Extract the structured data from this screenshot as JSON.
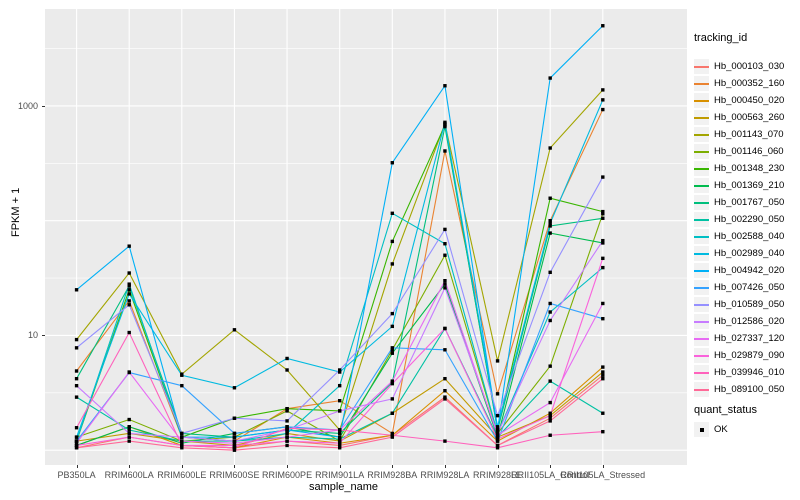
{
  "axes": {
    "y_title": "FPKM + 1",
    "x_title": "sample_name",
    "y_tick_labels": [
      "10",
      "1000"
    ]
  },
  "legend": {
    "tracking_title": "tracking_id",
    "quant_title": "quant_status",
    "quant_item": "OK"
  },
  "style": {
    "panel_bg": "#EBEBEB",
    "grid_color": "#FFFFFF",
    "tick_label_color": "#4D4D4D",
    "point_color": "#000000"
  },
  "chart_data": {
    "type": "line",
    "title": "",
    "xlabel": "sample_name",
    "ylabel": "FPKM + 1",
    "y_scale": "log10",
    "ylim": [
      1,
      7000
    ],
    "y_major_breaks": [
      1,
      10,
      100,
      1000
    ],
    "y_minor_breaks": [
      3.162,
      31.62,
      316.2,
      3162
    ],
    "y_labeled_breaks": [
      10,
      1000
    ],
    "grid": true,
    "legend_position": "right",
    "point_shape": "black-square",
    "quant_status_value": "OK",
    "categories": [
      "PB350LA",
      "RRIM600LA",
      "RRIM600LE",
      "RRIM600SE",
      "RRIM600PE",
      "RRIM901LA",
      "RRIM928BA",
      "RRIM928LA",
      "RRIM928LE",
      "RRII105LA_Control",
      "RRII105LA_Stressed"
    ],
    "series": [
      {
        "name": "Hb_000103_030",
        "color": "#F8766D",
        "values": [
          1.05,
          1.3,
          1.1,
          1.05,
          1.2,
          1.1,
          1.35,
          2.9,
          1.1,
          1.9,
          4.5
        ]
      },
      {
        "name": "Hb_000352_160",
        "color": "#EA8331",
        "values": [
          4.9,
          20,
          1.3,
          1.2,
          2.3,
          2.7,
          1.4,
          405,
          3.1,
          100,
          930
        ]
      },
      {
        "name": "Hb_000450_020",
        "color": "#D89000",
        "values": [
          1.1,
          1.6,
          1.1,
          1.05,
          1.3,
          1.15,
          1.35,
          3.3,
          1.2,
          2.1,
          5.3
        ]
      },
      {
        "name": "Hb_000563_260",
        "color": "#C09B00",
        "values": [
          1.2,
          1.4,
          1.2,
          1.1,
          1.4,
          1.2,
          2.1,
          4.2,
          1.3,
          2.0,
          4.8
        ]
      },
      {
        "name": "Hb_001143_070",
        "color": "#A3A500",
        "values": [
          9.2,
          35,
          4.6,
          11.2,
          5.0,
          1.5,
          42,
          700,
          6.0,
          430,
          1380
        ]
      },
      {
        "name": "Hb_001146_060",
        "color": "#7CAE00",
        "values": [
          1.3,
          1.85,
          1.2,
          1.3,
          2.2,
          1.2,
          7.5,
          50,
          1.4,
          5.4,
          115
        ]
      },
      {
        "name": "Hb_001348_230",
        "color": "#39B600",
        "values": [
          1.2,
          25,
          1.3,
          1.9,
          2.3,
          2.2,
          66,
          680,
          1.5,
          157,
          120
        ]
      },
      {
        "name": "Hb_001369_210",
        "color": "#00BB4E",
        "values": [
          1.1,
          1.6,
          1.15,
          1.4,
          1.6,
          1.3,
          7.0,
          28,
          1.3,
          78,
          64
        ]
      },
      {
        "name": "Hb_001767_050",
        "color": "#00BF7D",
        "values": [
          4.2,
          27,
          1.4,
          1.3,
          1.5,
          1.4,
          3.9,
          660,
          1.5,
          90,
          105
        ]
      },
      {
        "name": "Hb_002290_050",
        "color": "#00C1A3",
        "values": [
          2.9,
          1.5,
          1.2,
          1.2,
          1.3,
          1.25,
          2.1,
          11.5,
          1.3,
          4.0,
          2.1
        ]
      },
      {
        "name": "Hb_002588_040",
        "color": "#00BFC4",
        "values": [
          1.2,
          28,
          1.3,
          1.2,
          1.4,
          3.65,
          116,
          63,
          1.4,
          16,
          39
        ]
      },
      {
        "name": "Hb_002989_040",
        "color": "#00BAE0",
        "values": [
          1.3,
          23,
          4.5,
          3.5,
          6.3,
          4.8,
          12,
          720,
          1.6,
          95,
          1130
        ]
      },
      {
        "name": "Hb_004942_020",
        "color": "#00B0F6",
        "values": [
          25,
          60,
          1.3,
          1.3,
          1.5,
          1.3,
          320,
          1500,
          1.5,
          1750,
          5000
        ]
      },
      {
        "name": "Hb_007426_050",
        "color": "#35A2FF",
        "values": [
          1.2,
          4.75,
          3.65,
          1.4,
          1.6,
          1.5,
          7.8,
          7.5,
          1.2,
          19,
          14
        ]
      },
      {
        "name": "Hb_010589_050",
        "color": "#9590FF",
        "values": [
          7.8,
          18.5,
          1.4,
          1.9,
          1.8,
          5.0,
          15.5,
          84,
          2.0,
          35.5,
          240
        ]
      },
      {
        "name": "Hb_012586_020",
        "color": "#C77CFF",
        "values": [
          3.65,
          1.4,
          1.3,
          1.2,
          1.5,
          2.2,
          2.8,
          26,
          1.4,
          13.5,
          67
        ]
      },
      {
        "name": "Hb_027337_120",
        "color": "#E76BF3",
        "values": [
          1.15,
          4.8,
          1.2,
          1.15,
          1.3,
          1.5,
          4.0,
          30,
          1.35,
          2.6,
          19
        ]
      },
      {
        "name": "Hb_029879_090",
        "color": "#FA62DB",
        "values": [
          1.1,
          1.3,
          1.1,
          1.1,
          1.2,
          1.15,
          3.8,
          11.5,
          1.25,
          2.0,
          47
        ]
      },
      {
        "name": "Hb_039946_010",
        "color": "#FF62BC",
        "values": [
          1.57,
          10.6,
          1.1,
          1.05,
          1.55,
          1.5,
          1.35,
          1.2,
          1.05,
          1.35,
          1.45
        ]
      },
      {
        "name": "Hb_089100_050",
        "color": "#FF6A98",
        "values": [
          1.05,
          1.2,
          1.05,
          1.0,
          1.1,
          1.05,
          1.3,
          2.8,
          1.1,
          1.8,
          4.2
        ]
      }
    ]
  }
}
